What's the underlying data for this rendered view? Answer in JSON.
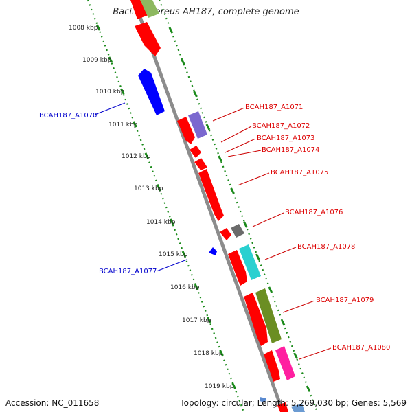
{
  "title": "Bacillus cereus AH187, complete genome",
  "accession": "Accession: NC_011658",
  "summary": "Topology: circular; Length: 5,269,030 bp; Genes: 5,569",
  "colors": {
    "red": "#ff0000",
    "blue": "#0000ff",
    "purple": "#7b68cf",
    "gray": "#6b6b6b",
    "cyan": "#2ad0d0",
    "olive": "#6b8e23",
    "magenta": "#ff1fa0",
    "tick_green": "#1a8a1a",
    "backbone": "#8c8c8c"
  },
  "kbp_labels": [
    "1008 kbp",
    "1009 kbp",
    "1010 kbp",
    "1011 kbp",
    "1012 kbp",
    "1013 kbp",
    "1014 kbp",
    "1015 kbp",
    "1016 kbp",
    "1017 kbp",
    "1018 kbp",
    "1019 kbp"
  ],
  "gene_labels": [
    {
      "text": "BCAH187_A1070",
      "color": "blue"
    },
    {
      "text": "BCAH187_A1071",
      "color": "red"
    },
    {
      "text": "BCAH187_A1072",
      "color": "red"
    },
    {
      "text": "BCAH187_A1073",
      "color": "red"
    },
    {
      "text": "BCAH187_A1074",
      "color": "red"
    },
    {
      "text": "BCAH187_A1075",
      "color": "red"
    },
    {
      "text": "BCAH187_A1076",
      "color": "red"
    },
    {
      "text": "BCAH187_A1077",
      "color": "blue"
    },
    {
      "text": "BCAH187_A1078",
      "color": "red"
    },
    {
      "text": "BCAH187_A1079",
      "color": "red"
    },
    {
      "text": "BCAH187_A1080",
      "color": "red"
    }
  ]
}
